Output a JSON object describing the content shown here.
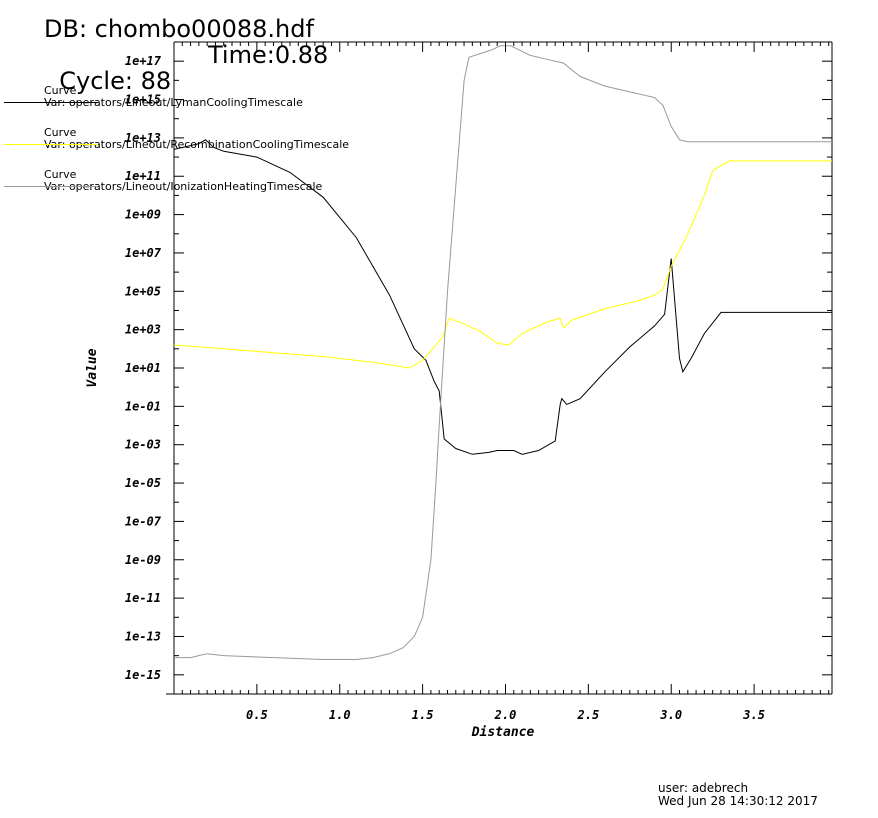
{
  "header": {
    "db": "DB: chombo00088.hdf",
    "cycle": "Cycle: 88",
    "time": "Time:0.88"
  },
  "legend": [
    {
      "label": "Curve",
      "var": "Var: operators/Lineout/LymanCoolingTimescale",
      "color": "#000000"
    },
    {
      "label": "Curve",
      "var": "Var: operators/Lineout/RecombinationCoolingTimescale",
      "color": "#ffff00"
    },
    {
      "label": "Curve",
      "var": "Var: operators/Lineout/IonizationHeatingTimescale",
      "color": "#999999"
    }
  ],
  "footer": {
    "user": "user: adebrech",
    "date": "Wed Jun 28 14:30:12 2017"
  },
  "chart_data": {
    "type": "line",
    "xlabel": "Distance",
    "ylabel": "Value",
    "xlim": [
      0.0,
      3.97
    ],
    "ylim_log10": [
      -16.0,
      18.0
    ],
    "y_scale": "log",
    "x_ticks": [
      "0.5",
      "1.0",
      "1.5",
      "2.0",
      "2.5",
      "3.0",
      "3.5"
    ],
    "y_ticks": [
      "1e-15",
      "1e-13",
      "1e-11",
      "1e-09",
      "1e-07",
      "1e-05",
      "1e-03",
      "1e-01",
      "1e+01",
      "1e+03",
      "1e+05",
      "1e+07",
      "1e+09",
      "1e+11",
      "1e+13",
      "1e+15",
      "1e+17"
    ],
    "legend_position": "top-left",
    "series": [
      {
        "name": "operators/Lineout/LymanCoolingTimescale",
        "color": "#000000",
        "x": [
          0.0,
          0.1,
          0.15,
          0.19,
          0.24,
          0.3,
          0.5,
          0.7,
          0.9,
          1.1,
          1.3,
          1.45,
          1.52,
          1.57,
          1.6,
          1.63,
          1.7,
          1.8,
          1.9,
          1.95,
          2.05,
          2.1,
          2.2,
          2.3,
          2.33,
          2.34,
          2.37,
          2.45,
          2.6,
          2.75,
          2.9,
          2.96,
          3.0,
          3.05,
          3.07,
          3.12,
          3.2,
          3.3,
          3.97
        ],
        "y": [
          12.4,
          12.6,
          12.7,
          12.9,
          12.5,
          12.3,
          12.0,
          11.2,
          9.9,
          7.8,
          4.8,
          2.0,
          1.4,
          0.3,
          -0.2,
          -2.7,
          -3.2,
          -3.5,
          -3.4,
          -3.3,
          -3.3,
          -3.5,
          -3.3,
          -2.8,
          -0.9,
          -0.6,
          -0.9,
          -0.6,
          0.8,
          2.1,
          3.2,
          3.8,
          6.7,
          1.5,
          0.8,
          1.5,
          2.8,
          3.9,
          3.9
        ]
      },
      {
        "name": "operators/Lineout/RecombinationCoolingTimescale",
        "color": "#ffff00",
        "x": [
          0.0,
          0.3,
          0.6,
          0.9,
          1.2,
          1.35,
          1.42,
          1.5,
          1.56,
          1.62,
          1.66,
          1.75,
          1.85,
          1.95,
          2.02,
          2.1,
          2.25,
          2.33,
          2.35,
          2.4,
          2.6,
          2.8,
          2.9,
          2.95,
          3.0,
          3.1,
          3.2,
          3.25,
          3.35,
          3.97
        ],
        "y": [
          2.2,
          2.0,
          1.8,
          1.6,
          1.3,
          1.1,
          1.0,
          1.4,
          2.0,
          2.6,
          3.6,
          3.3,
          2.9,
          2.3,
          2.2,
          2.8,
          3.4,
          3.6,
          3.1,
          3.5,
          4.1,
          4.5,
          4.8,
          5.1,
          6.3,
          8.0,
          10.0,
          11.3,
          11.8,
          11.8
        ]
      },
      {
        "name": "operators/Lineout/IonizationHeatingTimescale",
        "color": "#999999",
        "x": [
          0.0,
          0.1,
          0.15,
          0.2,
          0.3,
          0.6,
          0.9,
          1.1,
          1.2,
          1.3,
          1.38,
          1.45,
          1.5,
          1.55,
          1.58,
          1.6,
          1.65,
          1.7,
          1.75,
          1.78,
          1.85,
          1.92,
          1.97,
          2.03,
          2.08,
          2.15,
          2.25,
          2.35,
          2.45,
          2.6,
          2.75,
          2.85,
          2.9,
          2.95,
          3.0,
          3.05,
          3.1,
          3.3,
          3.97
        ],
        "y": [
          -14.1,
          -14.1,
          -14.0,
          -13.9,
          -14.0,
          -14.1,
          -14.2,
          -14.2,
          -14.1,
          -13.9,
          -13.6,
          -13.0,
          -12.0,
          -9.0,
          -5.0,
          -2.0,
          5.0,
          10.5,
          16.0,
          17.2,
          17.4,
          17.6,
          17.8,
          17.8,
          17.6,
          17.3,
          17.1,
          16.9,
          16.2,
          15.7,
          15.4,
          15.2,
          15.1,
          14.7,
          13.6,
          12.9,
          12.8,
          12.8,
          12.8
        ]
      }
    ]
  }
}
